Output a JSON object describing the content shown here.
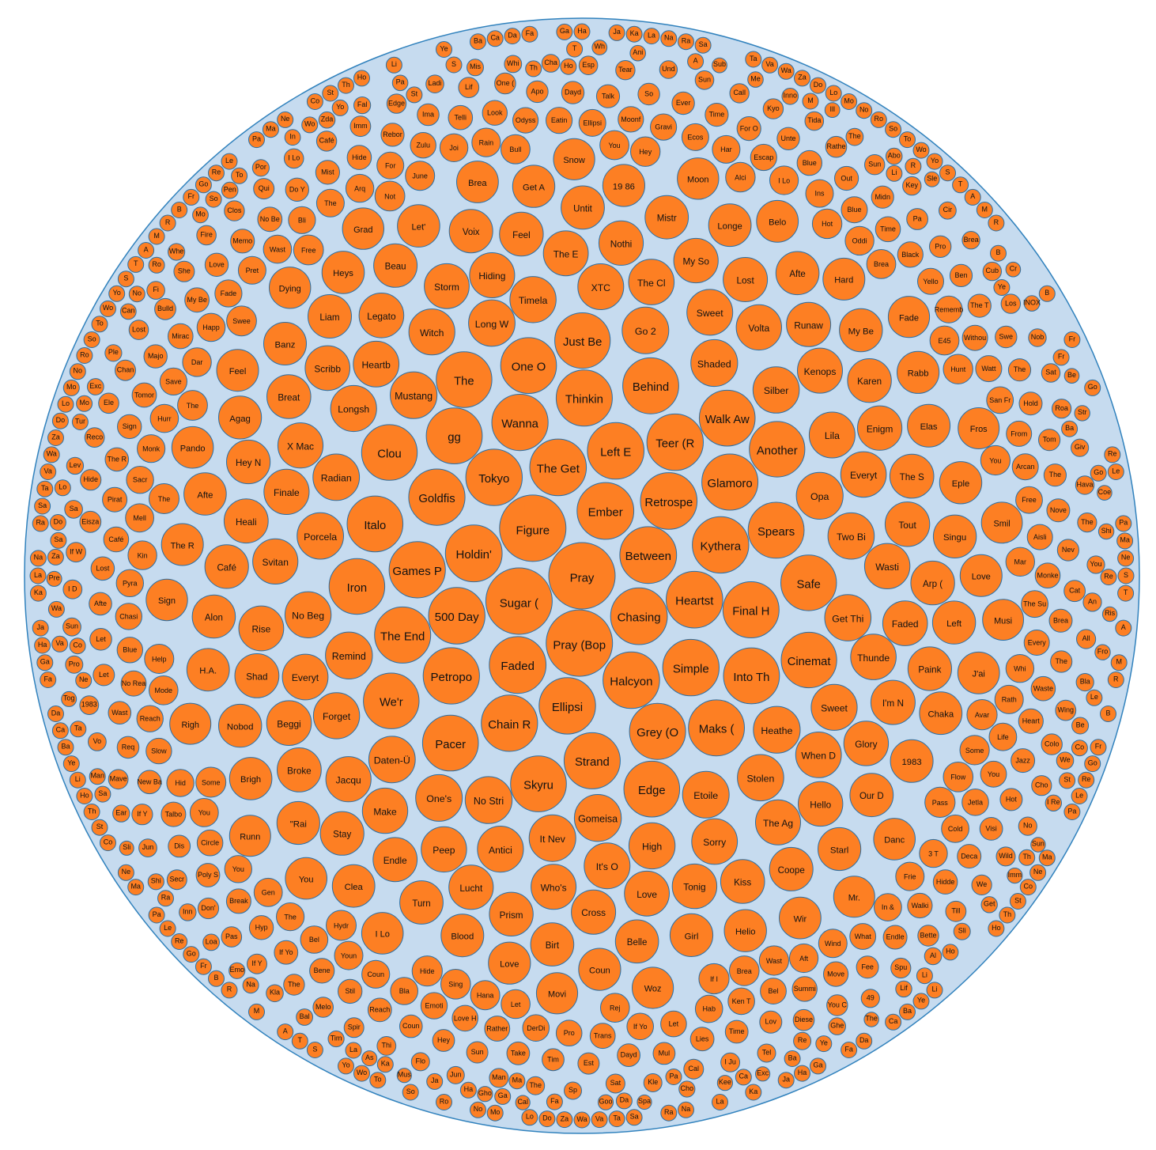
{
  "colors": {
    "background_circle": "#c6dbef",
    "background_stroke": "#3182bd",
    "bubble_fill": "#fd7f23",
    "bubble_stroke": "#2a6fa5"
  },
  "chart_data": {
    "type": "packed-bubble",
    "title": "",
    "labels": [
      "Pray",
      "Pray (Bop",
      "Sugar (",
      "Figure",
      "Ember",
      "Between",
      "Chasing",
      "Faded",
      "Holdin'",
      "The Get",
      "Retrospe",
      "Heartst",
      "Halcyon",
      "Left E",
      "Ellipsi",
      "500 Day",
      "Tokyo",
      "Kythera",
      "Simple",
      "Teer (R",
      "Chain R",
      "Petropo",
      "Games P",
      "Goldfis",
      "Wanna",
      "Final H",
      "Grey (O",
      "Glamoro",
      "Thinkin",
      "Strand",
      "The End",
      "gg",
      "Into Th",
      "Spears",
      "Behind",
      "Maks (",
      "Skyru",
      "Pacer",
      "Italo",
      "Walk Aw",
      "One O",
      "Edge",
      "Iron",
      "Safe",
      "We'r",
      "Clou",
      "The",
      "Another",
      "Just Be",
      "Cinemat",
      "Gomeisa",
      "No Stri",
      "Remind",
      "Mustang",
      "Heathe",
      "Shaded",
      "Opa",
      "Etoile",
      "Go 2",
      "It Nev",
      "One's",
      "Daten-Ü",
      "Porcela",
      "Radian",
      "Long W",
      "Silber",
      "Get Thi",
      "Stolen",
      "Two Bi",
      "No Beg",
      "High",
      "Timela",
      "Forget",
      "Longsh",
      "Sweet",
      "Antici",
      "Witch",
      "Lila",
      "XTC",
      "It's O",
      "Sweet",
      "Everyt",
      "Heartb",
      "When D",
      "Sorry",
      "Everyt",
      "The Cl",
      "Thunde",
      "Volta",
      "Wasti",
      "Peep",
      "Make",
      "Svitan",
      "Finale",
      "Jacqu",
      "X Mac",
      "Who's",
      "Hiding",
      "Kenops",
      "The Ag",
      "Storm",
      "The E",
      "Love",
      "Rise",
      "Faded",
      "Beggi",
      "Scribb",
      "Legato",
      "Tout",
      "Glory",
      "Hello",
      "Tonig",
      "Lucht",
      "Enigm",
      "Nothi",
      "My So",
      "I'm N",
      "Cross",
      "Lost",
      "Runaw",
      "Endle",
      "Shad",
      "Heali",
      "Broke",
      "Breat",
      "The S",
      "Kiss",
      "Prism",
      "Feel",
      "Karen",
      "Arp (",
      "Stay",
      "Hey N",
      "Café",
      "Paink",
      "Coope",
      "Liam",
      "Beau",
      "Voix",
      "Our D",
      "Turn",
      "Untit",
      "Mistr",
      "Belle",
      "Birt",
      "Alon",
      "Afte",
      "My Be",
      "Nobod",
      "Singu",
      "Left",
      "Starl",
      "Girl",
      "\"Rai",
      "Agag",
      "Banz",
      "Elas",
      "1983",
      "Blood",
      "Longe",
      "Chaka",
      "Clea",
      "H.A.",
      "Afte",
      "Heys",
      "Let'",
      "Brigh",
      "Eple",
      "Helio",
      "Get A",
      "19 86",
      "Rabb",
      "Coun",
      "Love",
      "Hard",
      "Love",
      "The R",
      "Feel",
      "Belo",
      "Wir",
      "Brea",
      "J'ai",
      "Danc",
      "I Lo",
      "You",
      "Pando",
      "Dying",
      "Grad",
      "Moon",
      "Sign",
      "Snow",
      "Fade",
      "Woz",
      "Movi",
      "Righ",
      "Mr.",
      "Runn",
      "Fros",
      "Smil",
      "Musi",
      "Avar",
      "Pass",
      "If I",
      "Hide",
      "Hydr",
      "Some",
      "The",
      "The",
      "Swee",
      "Free",
      "Not",
      "Flow",
      "Brea",
      "Sing",
      "Hey",
      "Alci",
      "Hot",
      "Hunt",
      "You",
      "Some",
      "Wast",
      "Hana",
      "Help",
      "June",
      "Bull",
      "You",
      "Brea",
      "E45",
      "Rej",
      "Let",
      "Mode",
      "Oddi",
      "Mar",
      "Kin",
      "Dar",
      "Aft",
      "Rain",
      "I Lo",
      "Rath",
      "Frie",
      "Wind",
      "Youn",
      "Gen",
      "You",
      "Mell",
      "Hurr",
      "Happ",
      "Wast",
      "Arq",
      "Joi",
      "Whi",
      "3 T",
      "Coun",
      "The",
      "Monk",
      "Pret",
      "The",
      "Har",
      "Ins",
      "Life",
      "Cold",
      "In &",
      "Hab",
      "Bla",
      "Bel",
      "You",
      "Hid",
      "Pyra",
      "Sacr",
      "Save",
      "Fade",
      "Bli",
      "For",
      "Ellipsi",
      "Ecos",
      "Rememb",
      "San Fr",
      "Free",
      "The Su",
      "Jetla",
      "Ken T",
      "If Yo",
      "DerDi",
      "Emoti",
      "Reach",
      "Chasi",
      "Eatin",
      "Gravi",
      "Escap",
      "Blue",
      "Yello",
      "Watt",
      "Arcan",
      "You",
      "What",
      "Bel",
      "Let",
      "Pro",
      "Love H",
      "Circle",
      "Slow",
      "Blue",
      "Zulu",
      "Odyss",
      "Moonf",
      "Black",
      "Withou",
      "From",
      "Aisli",
      "Every",
      "Trans",
      "Rather",
      "No Rea",
      "Time",
      "Monke",
      "Café",
      "Mirac",
      "Summi",
      "Look",
      "Blue",
      "Heart",
      "Walki",
      "Move",
      "Bene",
      "Break",
      "Talbo",
      "Pirat",
      "Tomor",
      "My Be",
      "No Be",
      "Hide",
      "Telli",
      "Waste",
      "Hidde",
      "Stil",
      "Hyp",
      "Sign",
      "Memo",
      "Mist",
      "For O",
      "Out",
      "Jazz",
      "Deca",
      "Endle",
      "Lies",
      "Reach",
      "If Yo",
      "Poly S",
      "New Ba",
      "Lost",
      "The R",
      "Majo",
      "Love",
      "Do Y",
      "Rebor",
      "Talk",
      "Time",
      "The T",
      "Hold",
      "Nove",
      "Brea",
      "Visi",
      "Time",
      "Dayd",
      "Take",
      "Coun",
      "Wast",
      "Afte",
      "Dayd",
      "Ever",
      "Unte",
      "Midn",
      "Ben",
      "The",
      "The",
      "Hot",
      "Fee",
      "Lov",
      "Mul",
      "Tim",
      "Hey",
      "Dis",
      "Req",
      "Let",
      "Ima",
      "Apo",
      "So",
      "Pro",
      "Swe",
      "Tom",
      "Nev",
      "The",
      "Est",
      "Sun",
      "Let",
      "Pa",
      "Cat",
      "Eisza",
      "Bulld",
      "Diese",
      "One (",
      "Rathe",
      "Colo",
      "Bette",
      "You C",
      "The",
      "Don'",
      "If Y",
      "Hide",
      "Chan",
      "She",
      "Qui",
      "Imm",
      "Lif",
      "Wing",
      "Till",
      "Melo",
      "Pas",
      "Ele",
      "Clos",
      "Café",
      "Kyo",
      "Sun",
      "Cho",
      "We",
      "Spu",
      "Cal",
      "Spir",
      "If Y",
      "Secr",
      "Mave",
      "If W",
      "Reco",
      "Lost",
      "Fire",
      "I Lo",
      "Edge",
      "Tear",
      "Call",
      "Los",
      "Roa",
      "The",
      "All",
      "Wild",
      "I Ju",
      "Sat",
      "Man",
      "Thi",
      "1983",
      "I D",
      "Esp",
      "Sun",
      "Tida",
      "Key",
      "Cub",
      "Sat",
      "Hava",
      "An",
      "No",
      "49",
      "Tel",
      "Kle",
      "The",
      "Flo",
      "Jun",
      "Vo",
      "Sun",
      "Sa",
      "Fi",
      "Ladi",
      "Cha",
      "Und",
      "Brea",
      "Nob",
      "Giv",
      "You",
      "Bla",
      "Re",
      "Sp",
      "Jun",
      "Pro",
      "Whi",
      "The",
      "Cir",
      "We",
      "Al",
      "Ghe",
      "Kla",
      "Inn",
      "Ear",
      "Lev",
      "Ple",
      "Whe",
      "Por",
      "Fal",
      "Mis",
      "Be",
      "Sli",
      "Bal",
      "Loa",
      "Exc",
      "Pen",
      "Zda",
      "Inno",
      "Abo",
      "I Re",
      "Get",
      "Lif",
      "Cho",
      "Tim",
      "Emo",
      "Shi",
      "Man",
      "Sa",
      "Tur",
      "Can",
      "Mo",
      "In",
      "Pa",
      "Ani",
      "Me",
      "INOX",
      "Str",
      "Shi",
      "Fro",
      "Imm",
      "Kee",
      "Goo",
      "Gho",
      "As",
      "Tog",
      "Pre",
      "Wh",
      "Sub",
      "Ill",
      "Sle",
      "Cr",
      "Be",
      "Coe",
      "Ris",
      "Sun",
      "The",
      "Exc",
      "Spa",
      "Cal",
      "Mus",
      "Sli"
    ]
  }
}
